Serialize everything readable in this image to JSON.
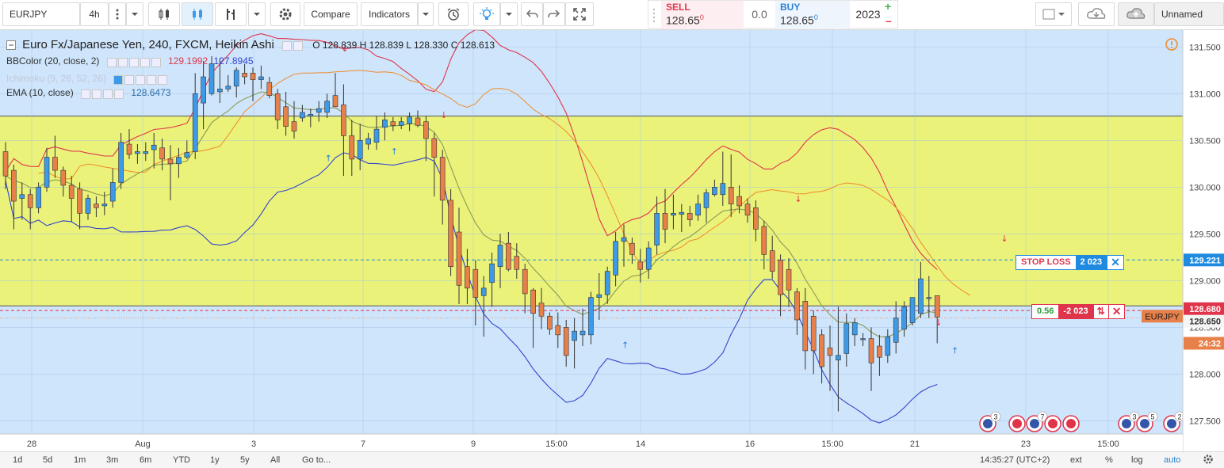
{
  "toolbar": {
    "symbol": "EURJPY",
    "interval": "4h",
    "compare_label": "Compare",
    "indicators_label": "Indicators",
    "sell_label": "SELL",
    "sell_price": "128.65",
    "sell_sup": "0",
    "spread": "0.0",
    "buy_label": "BUY",
    "buy_price": "128.65",
    "buy_sup": "0",
    "quantity": "2023",
    "layout_name": "Unnamed"
  },
  "legend": {
    "title": "Euro Fx/Japanese Yen, 240, FXCM, Heikin Ashi",
    "o_label": "O",
    "o": "128.839",
    "h_label": "H",
    "h": "128.839",
    "l_label": "L",
    "l": "128.330",
    "c_label": "C",
    "c": "128.613",
    "bb_name": "BBColor (20, close, 2)",
    "bb_upper": "129.1992",
    "bb_lower": "127.8945",
    "ichimoku_name": "Ichimoku (9, 26, 52, 26)",
    "ema_name": "EMA (10, close)",
    "ema_value": "128.6473"
  },
  "orders": {
    "stop_loss_label": "STOP LOSS",
    "stop_loss_qty": "2 023",
    "position_pnl": "0.56",
    "position_qty": "-2 023",
    "close_icon": "close-icon",
    "reverse_icon": "reverse-icon"
  },
  "price_scale": {
    "ticks": [
      "131.500",
      "131.000",
      "130.500",
      "130.000",
      "129.500",
      "129.000",
      "128.500",
      "128.000",
      "127.500"
    ],
    "stop_loss_tag": "129.221",
    "last_price_tag": "128.680",
    "current_tag": "128.650",
    "symbol_tag": "EURJPY",
    "countdown": "24:32"
  },
  "time_scale": {
    "labels": [
      "28",
      "Aug",
      "3",
      "7",
      "9",
      "15:00",
      "14",
      "16",
      "15:00",
      "21",
      "23",
      "15:00"
    ]
  },
  "events": {
    "badge_a": "3",
    "badge_b": "7",
    "badge_c": "3",
    "badge_d": "5",
    "badge_e": "2"
  },
  "bottom": {
    "ranges": [
      "1d",
      "5d",
      "1m",
      "3m",
      "6m",
      "YTD",
      "1y",
      "5y",
      "All"
    ],
    "goto": "Go to...",
    "clock": "14:35:27 (UTC+2)",
    "ext": "ext",
    "percent": "%",
    "log": "log",
    "auto": "auto"
  },
  "colors": {
    "up": "#3d9ae8",
    "down": "#e8804a",
    "zone_fill": "#eaf27a",
    "bg": "#cfe5fb",
    "bb_upper": "#e0344a",
    "bb_lower": "#3344cc",
    "ema": "#8a9b54",
    "band_orange": "#f08a2a",
    "stop_loss": "#1e8be0",
    "position": "#e0344a"
  },
  "chart_data": {
    "type": "candlestick",
    "title": "Euro Fx/Japanese Yen, 240, FXCM, Heikin Ashi",
    "ylim": [
      127.36,
      131.68
    ],
    "zone": [
      128.73,
      130.76
    ],
    "stop_loss": 129.221,
    "position_price": 128.65,
    "current_price": 128.6,
    "x_labels": [
      "28",
      "Aug",
      "3",
      "7",
      "9",
      "15:00",
      "14",
      "16",
      "15:00",
      "21",
      "23",
      "15:00"
    ],
    "candles": [
      {
        "o": 130.38,
        "h": 130.48,
        "l": 129.98,
        "c": 130.12
      },
      {
        "o": 130.18,
        "h": 130.24,
        "l": 129.55,
        "c": 129.85
      },
      {
        "o": 129.88,
        "h": 130.05,
        "l": 129.65,
        "c": 129.92
      },
      {
        "o": 129.92,
        "h": 129.98,
        "l": 129.55,
        "c": 129.78
      },
      {
        "o": 129.78,
        "h": 130.05,
        "l": 129.72,
        "c": 130.0
      },
      {
        "o": 130.0,
        "h": 130.42,
        "l": 129.95,
        "c": 130.32
      },
      {
        "o": 130.32,
        "h": 130.55,
        "l": 130.1,
        "c": 130.18
      },
      {
        "o": 130.18,
        "h": 130.22,
        "l": 129.9,
        "c": 130.02
      },
      {
        "o": 130.02,
        "h": 130.12,
        "l": 129.63,
        "c": 129.88
      },
      {
        "o": 129.98,
        "h": 130.05,
        "l": 129.55,
        "c": 129.72
      },
      {
        "o": 129.72,
        "h": 129.92,
        "l": 129.65,
        "c": 129.88
      },
      {
        "o": 129.82,
        "h": 129.9,
        "l": 129.68,
        "c": 129.78
      },
      {
        "o": 129.8,
        "h": 129.95,
        "l": 129.7,
        "c": 129.82
      },
      {
        "o": 129.85,
        "h": 130.2,
        "l": 129.78,
        "c": 130.05
      },
      {
        "o": 130.05,
        "h": 130.58,
        "l": 129.98,
        "c": 130.48
      },
      {
        "o": 130.46,
        "h": 130.62,
        "l": 130.3,
        "c": 130.35
      },
      {
        "o": 130.36,
        "h": 130.46,
        "l": 130.25,
        "c": 130.38
      },
      {
        "o": 130.36,
        "h": 130.48,
        "l": 130.28,
        "c": 130.38
      },
      {
        "o": 130.4,
        "h": 130.58,
        "l": 130.2,
        "c": 130.45
      },
      {
        "o": 130.42,
        "h": 130.52,
        "l": 130.18,
        "c": 130.3
      },
      {
        "o": 130.3,
        "h": 130.45,
        "l": 129.86,
        "c": 130.25
      },
      {
        "o": 130.25,
        "h": 130.42,
        "l": 130.1,
        "c": 130.32
      },
      {
        "o": 130.32,
        "h": 130.5,
        "l": 130.3,
        "c": 130.37
      },
      {
        "o": 130.38,
        "h": 131.22,
        "l": 130.3,
        "c": 131.0
      },
      {
        "o": 130.9,
        "h": 131.35,
        "l": 130.62,
        "c": 131.18
      },
      {
        "o": 131.0,
        "h": 131.4,
        "l": 130.98,
        "c": 131.32
      },
      {
        "o": 131.02,
        "h": 131.38,
        "l": 130.9,
        "c": 131.05
      },
      {
        "o": 131.05,
        "h": 131.2,
        "l": 131.02,
        "c": 131.08
      },
      {
        "o": 131.08,
        "h": 131.28,
        "l": 130.96,
        "c": 131.25
      },
      {
        "o": 131.22,
        "h": 131.32,
        "l": 131.1,
        "c": 131.18
      },
      {
        "o": 131.22,
        "h": 131.28,
        "l": 130.92,
        "c": 131.15
      },
      {
        "o": 131.15,
        "h": 131.3,
        "l": 131.05,
        "c": 131.18
      },
      {
        "o": 131.12,
        "h": 131.18,
        "l": 130.95,
        "c": 130.98
      },
      {
        "o": 131.0,
        "h": 131.05,
        "l": 130.62,
        "c": 130.72
      },
      {
        "o": 130.86,
        "h": 131.02,
        "l": 130.55,
        "c": 130.65
      },
      {
        "o": 130.7,
        "h": 130.92,
        "l": 130.52,
        "c": 130.6
      },
      {
        "o": 130.74,
        "h": 130.88,
        "l": 130.7,
        "c": 130.8
      },
      {
        "o": 130.76,
        "h": 130.84,
        "l": 130.64,
        "c": 130.78
      },
      {
        "o": 130.8,
        "h": 130.92,
        "l": 130.7,
        "c": 130.84
      },
      {
        "o": 130.8,
        "h": 131.0,
        "l": 130.74,
        "c": 130.92
      },
      {
        "o": 130.98,
        "h": 131.22,
        "l": 130.9,
        "c": 130.86
      },
      {
        "o": 130.88,
        "h": 131.1,
        "l": 130.12,
        "c": 130.55
      },
      {
        "o": 130.55,
        "h": 130.72,
        "l": 130.12,
        "c": 130.3
      },
      {
        "o": 130.3,
        "h": 130.68,
        "l": 130.18,
        "c": 130.5
      },
      {
        "o": 130.46,
        "h": 130.58,
        "l": 130.4,
        "c": 130.52
      },
      {
        "o": 130.48,
        "h": 130.76,
        "l": 130.4,
        "c": 130.62
      },
      {
        "o": 130.64,
        "h": 130.8,
        "l": 130.5,
        "c": 130.72
      },
      {
        "o": 130.7,
        "h": 130.75,
        "l": 130.6,
        "c": 130.66
      },
      {
        "o": 130.66,
        "h": 130.75,
        "l": 130.62,
        "c": 130.7
      },
      {
        "o": 130.68,
        "h": 130.8,
        "l": 130.6,
        "c": 130.75
      },
      {
        "o": 130.74,
        "h": 130.82,
        "l": 130.64,
        "c": 130.66
      },
      {
        "o": 130.7,
        "h": 130.76,
        "l": 130.28,
        "c": 130.52
      },
      {
        "o": 130.52,
        "h": 130.58,
        "l": 129.9,
        "c": 130.32
      },
      {
        "o": 130.32,
        "h": 130.4,
        "l": 129.6,
        "c": 129.86
      },
      {
        "o": 129.86,
        "h": 129.98,
        "l": 129.05,
        "c": 129.15
      },
      {
        "o": 129.52,
        "h": 129.78,
        "l": 128.75,
        "c": 128.95
      },
      {
        "o": 129.15,
        "h": 129.34,
        "l": 128.75,
        "c": 128.92
      },
      {
        "o": 129.12,
        "h": 129.22,
        "l": 128.52,
        "c": 128.82
      },
      {
        "o": 128.84,
        "h": 129.05,
        "l": 128.4,
        "c": 128.92
      },
      {
        "o": 128.98,
        "h": 129.3,
        "l": 128.72,
        "c": 129.18
      },
      {
        "o": 129.15,
        "h": 129.5,
        "l": 128.92,
        "c": 129.38
      },
      {
        "o": 129.4,
        "h": 129.52,
        "l": 129.1,
        "c": 129.12
      },
      {
        "o": 129.26,
        "h": 129.4,
        "l": 129.02,
        "c": 129.12
      },
      {
        "o": 129.12,
        "h": 129.18,
        "l": 128.65,
        "c": 128.86
      },
      {
        "o": 128.9,
        "h": 128.92,
        "l": 128.28,
        "c": 128.65
      },
      {
        "o": 128.76,
        "h": 128.92,
        "l": 128.48,
        "c": 128.62
      },
      {
        "o": 128.62,
        "h": 128.66,
        "l": 128.42,
        "c": 128.48
      },
      {
        "o": 128.52,
        "h": 128.66,
        "l": 128.28,
        "c": 128.42
      },
      {
        "o": 128.5,
        "h": 128.58,
        "l": 128.08,
        "c": 128.2
      },
      {
        "o": 128.36,
        "h": 128.6,
        "l": 128.06,
        "c": 128.46
      },
      {
        "o": 128.42,
        "h": 128.7,
        "l": 128.3,
        "c": 128.46
      },
      {
        "o": 128.42,
        "h": 128.88,
        "l": 128.32,
        "c": 128.82
      },
      {
        "o": 128.82,
        "h": 129.08,
        "l": 128.58,
        "c": 128.85
      },
      {
        "o": 128.85,
        "h": 129.15,
        "l": 128.75,
        "c": 129.1
      },
      {
        "o": 129.06,
        "h": 129.52,
        "l": 128.94,
        "c": 129.42
      },
      {
        "o": 129.42,
        "h": 129.6,
        "l": 129.15,
        "c": 129.46
      },
      {
        "o": 129.4,
        "h": 129.46,
        "l": 129.18,
        "c": 129.28
      },
      {
        "o": 129.2,
        "h": 129.34,
        "l": 128.98,
        "c": 129.12
      },
      {
        "o": 129.12,
        "h": 129.42,
        "l": 129.02,
        "c": 129.35
      },
      {
        "o": 129.38,
        "h": 129.9,
        "l": 129.28,
        "c": 129.72
      },
      {
        "o": 129.72,
        "h": 129.98,
        "l": 129.4,
        "c": 129.55
      },
      {
        "o": 129.7,
        "h": 129.92,
        "l": 129.55,
        "c": 129.72
      },
      {
        "o": 129.71,
        "h": 129.82,
        "l": 129.52,
        "c": 129.73
      },
      {
        "o": 129.72,
        "h": 129.8,
        "l": 129.58,
        "c": 129.65
      },
      {
        "o": 129.7,
        "h": 129.92,
        "l": 129.64,
        "c": 129.82
      },
      {
        "o": 129.78,
        "h": 129.98,
        "l": 129.62,
        "c": 129.94
      },
      {
        "o": 129.92,
        "h": 130.08,
        "l": 129.9,
        "c": 130.0
      },
      {
        "o": 129.92,
        "h": 130.38,
        "l": 129.8,
        "c": 130.04
      },
      {
        "o": 130.0,
        "h": 130.35,
        "l": 129.68,
        "c": 129.82
      },
      {
        "o": 129.9,
        "h": 130.02,
        "l": 129.72,
        "c": 129.8
      },
      {
        "o": 129.82,
        "h": 129.88,
        "l": 129.62,
        "c": 129.7
      },
      {
        "o": 129.78,
        "h": 129.86,
        "l": 129.42,
        "c": 129.55
      },
      {
        "o": 129.58,
        "h": 129.64,
        "l": 129.12,
        "c": 129.28
      },
      {
        "o": 129.32,
        "h": 129.48,
        "l": 129.02,
        "c": 129.1
      },
      {
        "o": 129.22,
        "h": 129.28,
        "l": 128.62,
        "c": 128.85
      },
      {
        "o": 129.12,
        "h": 129.24,
        "l": 128.72,
        "c": 128.9
      },
      {
        "o": 128.88,
        "h": 128.92,
        "l": 128.42,
        "c": 128.58
      },
      {
        "o": 128.78,
        "h": 128.92,
        "l": 128.05,
        "c": 128.25
      },
      {
        "o": 128.62,
        "h": 128.68,
        "l": 128.0,
        "c": 128.25
      },
      {
        "o": 128.42,
        "h": 128.48,
        "l": 127.9,
        "c": 128.08
      },
      {
        "o": 128.28,
        "h": 128.52,
        "l": 127.82,
        "c": 128.2
      },
      {
        "o": 128.15,
        "h": 128.72,
        "l": 127.6,
        "c": 128.2
      },
      {
        "o": 128.22,
        "h": 128.65,
        "l": 128.08,
        "c": 128.54
      },
      {
        "o": 128.42,
        "h": 128.6,
        "l": 128.3,
        "c": 128.55
      },
      {
        "o": 128.37,
        "h": 128.44,
        "l": 128.3,
        "c": 128.38
      },
      {
        "o": 128.38,
        "h": 128.5,
        "l": 127.82,
        "c": 128.12
      },
      {
        "o": 128.3,
        "h": 128.42,
        "l": 127.98,
        "c": 128.18
      },
      {
        "o": 128.2,
        "h": 128.48,
        "l": 128.12,
        "c": 128.4
      },
      {
        "o": 128.34,
        "h": 128.78,
        "l": 128.22,
        "c": 128.6
      },
      {
        "o": 128.48,
        "h": 128.78,
        "l": 128.4,
        "c": 128.72
      },
      {
        "o": 128.55,
        "h": 128.8,
        "l": 128.52,
        "c": 128.82
      },
      {
        "o": 128.65,
        "h": 129.2,
        "l": 128.6,
        "c": 129.02
      },
      {
        "o": 128.82,
        "h": 129.05,
        "l": 128.6,
        "c": 128.82
      },
      {
        "o": 128.84,
        "h": 128.84,
        "l": 128.33,
        "c": 128.61
      }
    ]
  }
}
